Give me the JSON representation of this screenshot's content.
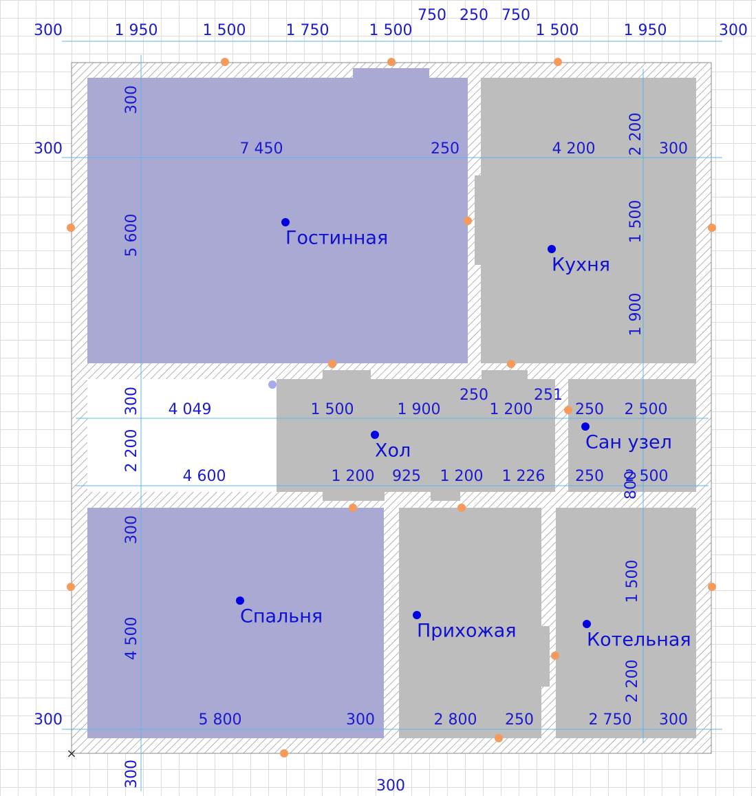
{
  "rooms": [
    "Гостинная",
    "Кухня",
    "Хол",
    "Сан узел",
    "Спальня",
    "Прихожая",
    "Котельная"
  ],
  "dimensions": [
    "300",
    "1 950",
    "1 500",
    "1 750",
    "1 500",
    "750",
    "250",
    "750",
    "1 500",
    "1 950",
    "300",
    "300",
    "7 450",
    "250",
    "4 200",
    "300",
    "300",
    "5 600",
    "2 200",
    "1 500",
    "1 900",
    "250",
    "251",
    "300",
    "2 200",
    "4 049",
    "1 500",
    "1 900",
    "1 200",
    "250",
    "2 500",
    "4 600",
    "1 200",
    "925",
    "1 200",
    "1 226",
    "250",
    "2 500",
    "800",
    "300",
    "4 500",
    "1 500",
    "2 200",
    "300",
    "5 800",
    "300",
    "2 800",
    "250",
    "2 750",
    "300",
    "300",
    "300"
  ]
}
